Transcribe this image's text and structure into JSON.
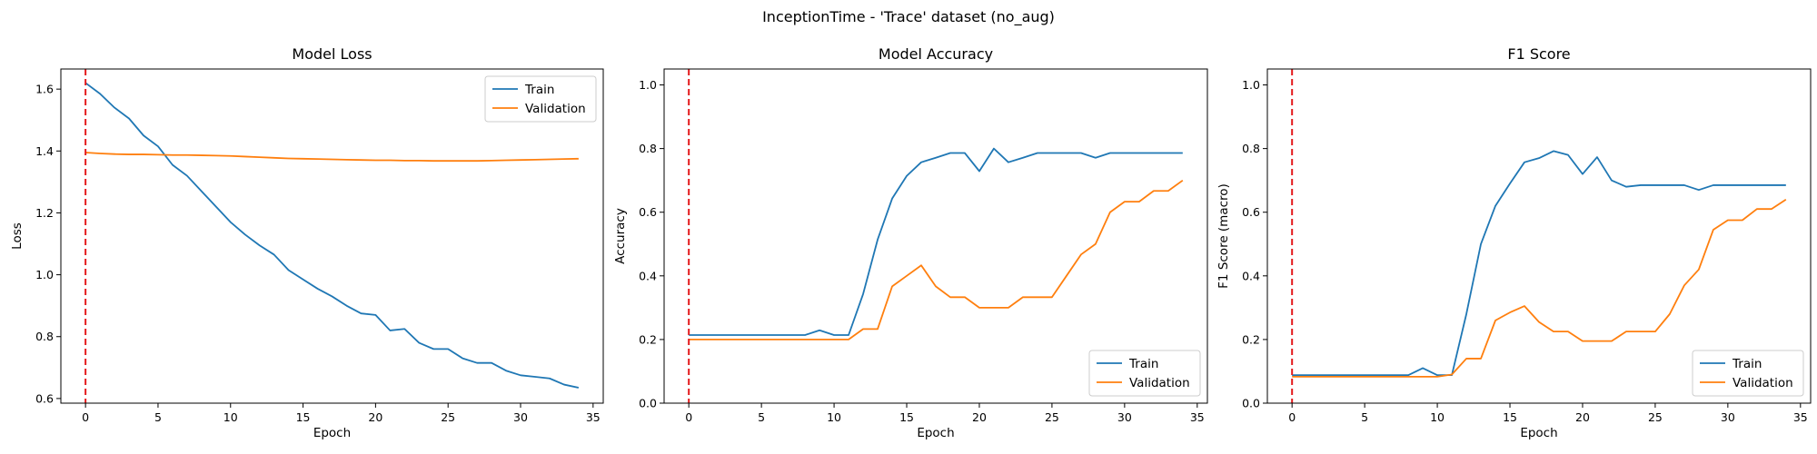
{
  "figure": {
    "suptitle": "InceptionTime - 'Trace' dataset (no_aug)"
  },
  "colors": {
    "train": "#1f77b4",
    "validation": "#ff7f0e",
    "marker": "#e41a1c"
  },
  "chart_data": [
    {
      "type": "line",
      "title": "Model Loss",
      "xlabel": "Epoch",
      "ylabel": "Loss",
      "xlim": [
        -1.7,
        35.7
      ],
      "ylim": [
        0.585,
        1.665
      ],
      "xticks": [
        0,
        5,
        10,
        15,
        20,
        25,
        30,
        35
      ],
      "yticks": [
        0.6,
        0.8,
        1.0,
        1.2,
        1.4,
        1.6
      ],
      "ytick_labels": [
        "0.6",
        "0.8",
        "1.0",
        "1.2",
        "1.4",
        "1.6"
      ],
      "legend": "top-right",
      "vline_x": 0,
      "x": [
        0,
        1,
        2,
        3,
        4,
        5,
        6,
        7,
        8,
        9,
        10,
        11,
        12,
        13,
        14,
        15,
        16,
        17,
        18,
        19,
        20,
        21,
        22,
        23,
        24,
        25,
        26,
        27,
        28,
        29,
        30,
        31,
        32,
        33,
        34
      ],
      "series": [
        {
          "name": "Train",
          "values": [
            1.62,
            1.585,
            1.54,
            1.505,
            1.45,
            1.415,
            1.355,
            1.32,
            1.27,
            1.22,
            1.17,
            1.13,
            1.095,
            1.065,
            1.015,
            0.985,
            0.955,
            0.93,
            0.9,
            0.875,
            0.87,
            0.82,
            0.825,
            0.78,
            0.76,
            0.76,
            0.73,
            0.715,
            0.715,
            0.69,
            0.675,
            0.67,
            0.665,
            0.645,
            0.635
          ]
        },
        {
          "name": "Validation",
          "values": [
            1.395,
            1.392,
            1.39,
            1.389,
            1.389,
            1.388,
            1.387,
            1.387,
            1.386,
            1.385,
            1.384,
            1.382,
            1.38,
            1.378,
            1.376,
            1.375,
            1.374,
            1.373,
            1.372,
            1.371,
            1.37,
            1.37,
            1.369,
            1.369,
            1.368,
            1.368,
            1.368,
            1.368,
            1.369,
            1.37,
            1.371,
            1.372,
            1.373,
            1.374,
            1.375
          ]
        }
      ]
    },
    {
      "type": "line",
      "title": "Model Accuracy",
      "xlabel": "Epoch",
      "ylabel": "Accuracy",
      "xlim": [
        -1.7,
        35.7
      ],
      "ylim": [
        0.0,
        1.05
      ],
      "xticks": [
        0,
        5,
        10,
        15,
        20,
        25,
        30,
        35
      ],
      "yticks": [
        0.0,
        0.2,
        0.4,
        0.6,
        0.8,
        1.0
      ],
      "ytick_labels": [
        "0.0",
        "0.2",
        "0.4",
        "0.6",
        "0.8",
        "1.0"
      ],
      "legend": "bottom-right",
      "vline_x": 0,
      "x": [
        0,
        1,
        2,
        3,
        4,
        5,
        6,
        7,
        8,
        9,
        10,
        11,
        12,
        13,
        14,
        15,
        16,
        17,
        18,
        19,
        20,
        21,
        22,
        23,
        24,
        25,
        26,
        27,
        28,
        29,
        30,
        31,
        32,
        33,
        34
      ],
      "series": [
        {
          "name": "Train",
          "values": [
            0.214,
            0.214,
            0.214,
            0.214,
            0.214,
            0.214,
            0.214,
            0.214,
            0.214,
            0.229,
            0.214,
            0.214,
            0.343,
            0.514,
            0.643,
            0.714,
            0.757,
            0.771,
            0.786,
            0.786,
            0.729,
            0.8,
            0.757,
            0.771,
            0.786,
            0.786,
            0.786,
            0.786,
            0.771,
            0.786,
            0.786,
            0.786,
            0.786,
            0.786,
            0.786
          ]
        },
        {
          "name": "Validation",
          "values": [
            0.2,
            0.2,
            0.2,
            0.2,
            0.2,
            0.2,
            0.2,
            0.2,
            0.2,
            0.2,
            0.2,
            0.2,
            0.233,
            0.233,
            0.367,
            0.4,
            0.433,
            0.367,
            0.333,
            0.333,
            0.3,
            0.3,
            0.3,
            0.333,
            0.333,
            0.333,
            0.4,
            0.467,
            0.5,
            0.6,
            0.633,
            0.633,
            0.667,
            0.667,
            0.7
          ]
        }
      ]
    },
    {
      "type": "line",
      "title": "F1 Score",
      "xlabel": "Epoch",
      "ylabel": "F1 Score (macro)",
      "xlim": [
        -1.7,
        35.7
      ],
      "ylim": [
        0.0,
        1.05
      ],
      "xticks": [
        0,
        5,
        10,
        15,
        20,
        25,
        30,
        35
      ],
      "yticks": [
        0.0,
        0.2,
        0.4,
        0.6,
        0.8,
        1.0
      ],
      "ytick_labels": [
        "0.0",
        "0.2",
        "0.4",
        "0.6",
        "0.8",
        "1.0"
      ],
      "legend": "bottom-right",
      "vline_x": 0,
      "x": [
        0,
        1,
        2,
        3,
        4,
        5,
        6,
        7,
        8,
        9,
        10,
        11,
        12,
        13,
        14,
        15,
        16,
        17,
        18,
        19,
        20,
        21,
        22,
        23,
        24,
        25,
        26,
        27,
        28,
        29,
        30,
        31,
        32,
        33,
        34
      ],
      "series": [
        {
          "name": "Train",
          "values": [
            0.088,
            0.088,
            0.088,
            0.088,
            0.088,
            0.088,
            0.088,
            0.088,
            0.088,
            0.11,
            0.088,
            0.088,
            0.28,
            0.5,
            0.62,
            0.69,
            0.757,
            0.77,
            0.792,
            0.78,
            0.72,
            0.773,
            0.7,
            0.68,
            0.685,
            0.685,
            0.685,
            0.685,
            0.67,
            0.685,
            0.685,
            0.685,
            0.685,
            0.685,
            0.685
          ]
        },
        {
          "name": "Validation",
          "values": [
            0.083,
            0.083,
            0.083,
            0.083,
            0.083,
            0.083,
            0.083,
            0.083,
            0.083,
            0.083,
            0.083,
            0.09,
            0.14,
            0.14,
            0.26,
            0.285,
            0.305,
            0.255,
            0.225,
            0.225,
            0.195,
            0.195,
            0.195,
            0.225,
            0.225,
            0.225,
            0.28,
            0.37,
            0.42,
            0.545,
            0.575,
            0.575,
            0.61,
            0.61,
            0.64
          ]
        }
      ]
    }
  ]
}
